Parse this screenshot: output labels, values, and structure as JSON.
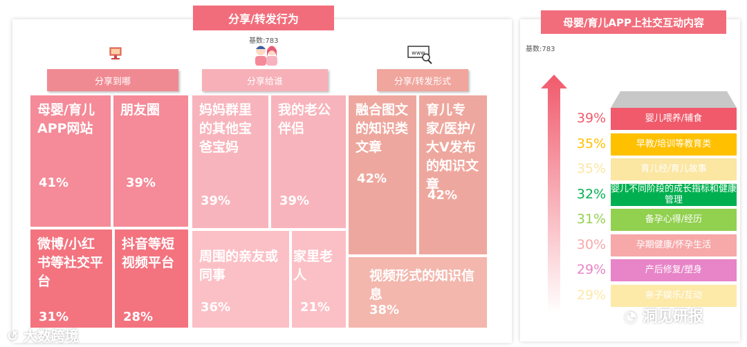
{
  "left": {
    "title": "分享/转发行为",
    "base": "基数:783",
    "headers": [
      "分享到哪",
      "分享给谁",
      "分享/转发形式"
    ],
    "icons": [
      "monitor-icon",
      "couple-icon",
      "www-search-icon"
    ]
  },
  "right": {
    "title": "母婴/育儿APP上社交互动内容",
    "base": "基数:783"
  },
  "chart_data": [
    {
      "type": "table",
      "title": "分享/转发行为",
      "groups": [
        {
          "name": "分享到哪",
          "items": [
            {
              "label": "母婴/育儿APP网站",
              "value": "41%"
            },
            {
              "label": "朋友圈",
              "value": "39%"
            },
            {
              "label": "微博/小红书等社交平台",
              "value": "31%"
            },
            {
              "label": "抖音等短视频平台",
              "value": "28%"
            }
          ]
        },
        {
          "name": "分享给谁",
          "items": [
            {
              "label": "妈妈群里的其他宝爸宝妈",
              "value": "39%"
            },
            {
              "label": "我的老公伴侣",
              "value": "39%"
            },
            {
              "label": "周围的亲友或同事",
              "value": "36%"
            },
            {
              "label": "家里老人",
              "value": "21%"
            }
          ]
        },
        {
          "name": "分享/转发形式",
          "items": [
            {
              "label": "融合图文的知识类文章",
              "value": "42%"
            },
            {
              "label": "育儿专家/医护/大V发布的知识文章",
              "value": "42%"
            },
            {
              "label": "视频形式的知识信息",
              "value": "38%"
            }
          ]
        }
      ]
    },
    {
      "type": "bar",
      "title": "母婴/育儿APP上社交互动内容",
      "categories": [
        "婴儿喂养/辅食",
        "早教/培训等教育类",
        "育儿经/育儿故事",
        "婴儿不同阶段的成长指标和健康管理",
        "备孕心得/经历",
        "孕期健康/怀孕生活",
        "产后修复/塑身",
        "亲子娱乐/互动"
      ],
      "values": [
        39,
        35,
        35,
        32,
        31,
        30,
        29,
        29
      ],
      "labels": [
        "39%",
        "35%",
        "35%",
        "32%",
        "31%",
        "30%",
        "29%",
        "29%"
      ],
      "colors": [
        "#f05a6b",
        "#ffc000",
        "#fbe6a2",
        "#00b050",
        "#92d050",
        "#f7a8a8",
        "#e884c8",
        "#fde9a8"
      ]
    }
  ],
  "watermarks": {
    "left": "大数跨境",
    "right": "洞见研报"
  }
}
